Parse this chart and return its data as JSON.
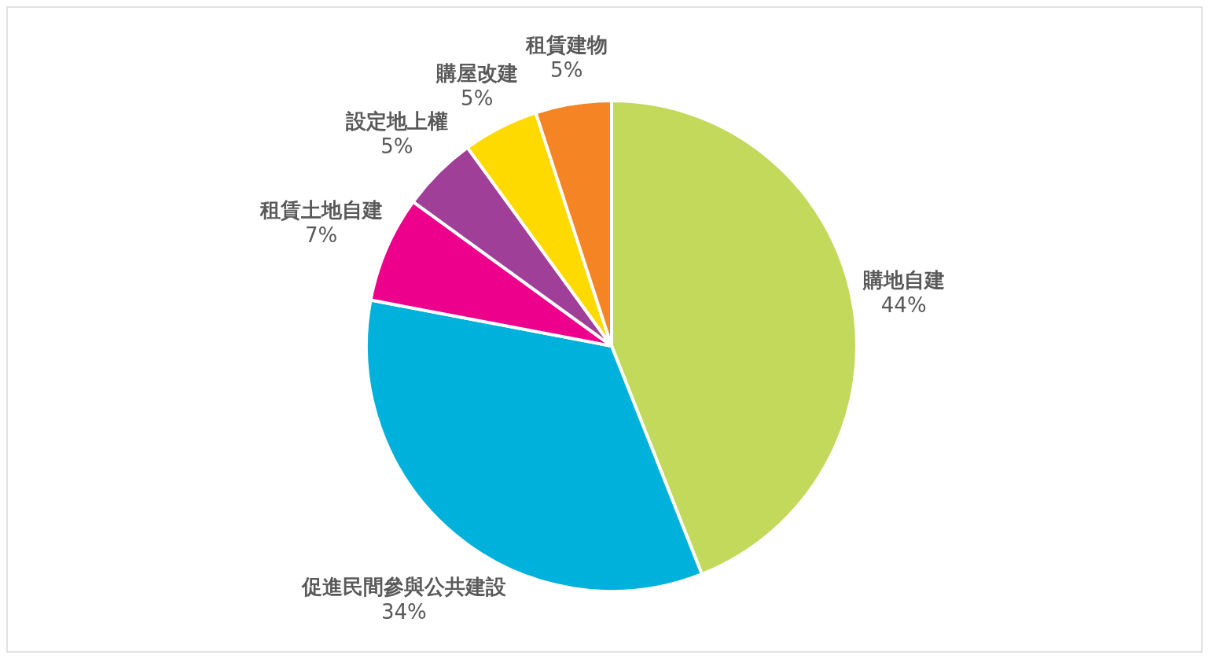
{
  "chart_data": {
    "type": "pie",
    "categories": [
      "購地自建",
      "促進民間參與公共建設",
      "租賃土地自建",
      "設定地上權",
      "購屋改建",
      "租賃建物"
    ],
    "values": [
      44,
      34,
      7,
      5,
      5,
      5
    ],
    "value_labels": [
      "44%",
      "34%",
      "7%",
      "5%",
      "5%",
      "5%"
    ],
    "colors": [
      "#c2d95b",
      "#00b1dc",
      "#ec008c",
      "#a03f98",
      "#ffda00",
      "#f58424"
    ]
  }
}
